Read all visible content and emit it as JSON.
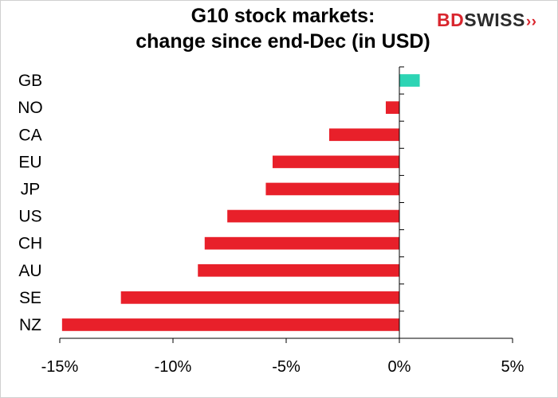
{
  "title_line1": "G10 stock markets:",
  "title_line2": "change since end-Dec (in USD)",
  "logo": {
    "part1": "BD",
    "part2": "SWISS",
    "arrows": "››"
  },
  "colors": {
    "negative": "#e8202a",
    "positive": "#2dd4b4",
    "axis": "#000000"
  },
  "chart_data": {
    "type": "bar",
    "orientation": "horizontal",
    "title": "G10 stock markets: change since end-Dec (in USD)",
    "xlabel": "",
    "ylabel": "",
    "categories": [
      "GB",
      "NO",
      "CA",
      "EU",
      "JP",
      "US",
      "CH",
      "AU",
      "SE",
      "NZ"
    ],
    "values": [
      0.9,
      -0.6,
      -3.1,
      -5.6,
      -5.9,
      -7.6,
      -8.6,
      -8.9,
      -12.3,
      -14.9
    ],
    "xlim": [
      -15,
      5
    ],
    "xticks": [
      -15,
      -10,
      -5,
      0,
      5
    ],
    "xtick_labels": [
      "-15%",
      "-10%",
      "-5%",
      "0%",
      "5%"
    ],
    "grid": false
  }
}
